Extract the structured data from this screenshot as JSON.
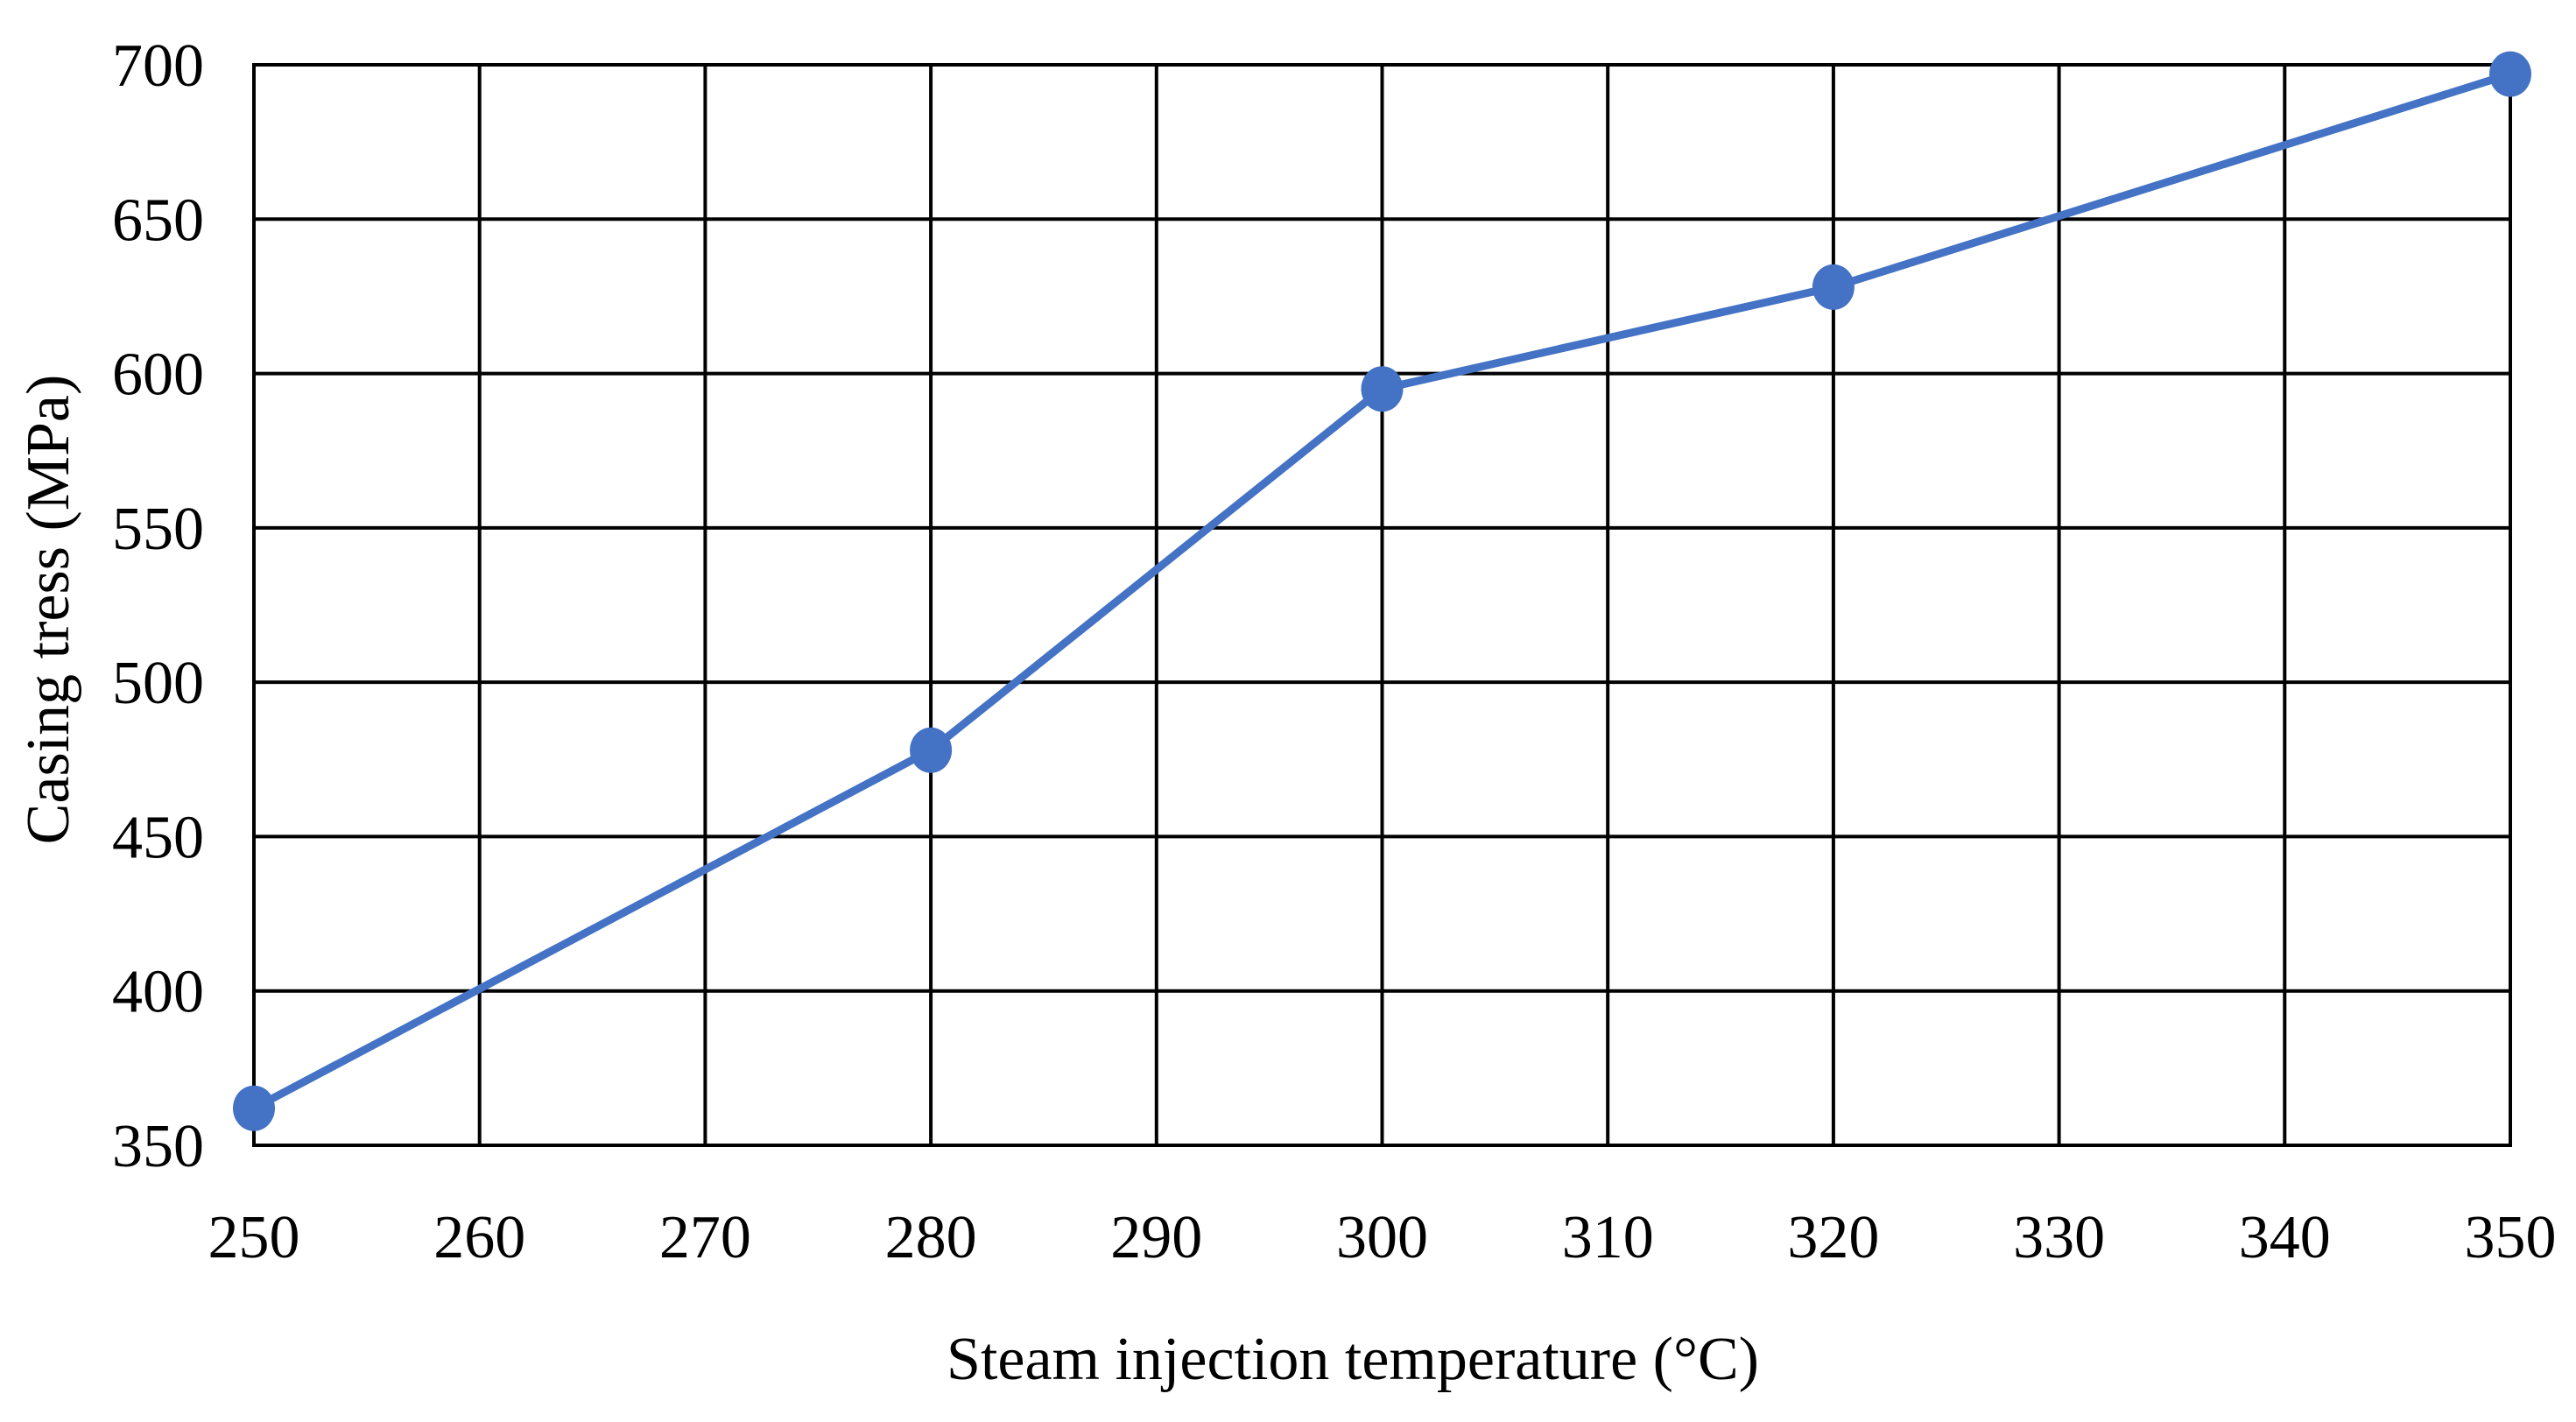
{
  "chart_data": {
    "type": "line",
    "title": "",
    "xlabel": "Steam injection temperature (°C)",
    "ylabel": "Casing tress (MPa)",
    "xlim": [
      250,
      350
    ],
    "ylim": [
      350,
      700
    ],
    "xticks": [
      250,
      260,
      270,
      280,
      290,
      300,
      310,
      320,
      330,
      340,
      350
    ],
    "yticks": [
      350,
      400,
      450,
      500,
      550,
      600,
      650,
      700
    ],
    "xtick_labels": [
      "250",
      "260",
      "270",
      "280",
      "290",
      "300",
      "310",
      "320",
      "330",
      "340",
      "350"
    ],
    "ytick_labels": [
      "350",
      "400",
      "450",
      "500",
      "550",
      "600",
      "650",
      "700"
    ],
    "grid": true,
    "legend": "none",
    "series": [
      {
        "name": "Casing stress",
        "color": "#4472C4",
        "x": [
          250,
          280,
          300,
          320,
          350
        ],
        "y": [
          362,
          478,
          595,
          628,
          697
        ]
      }
    ]
  }
}
